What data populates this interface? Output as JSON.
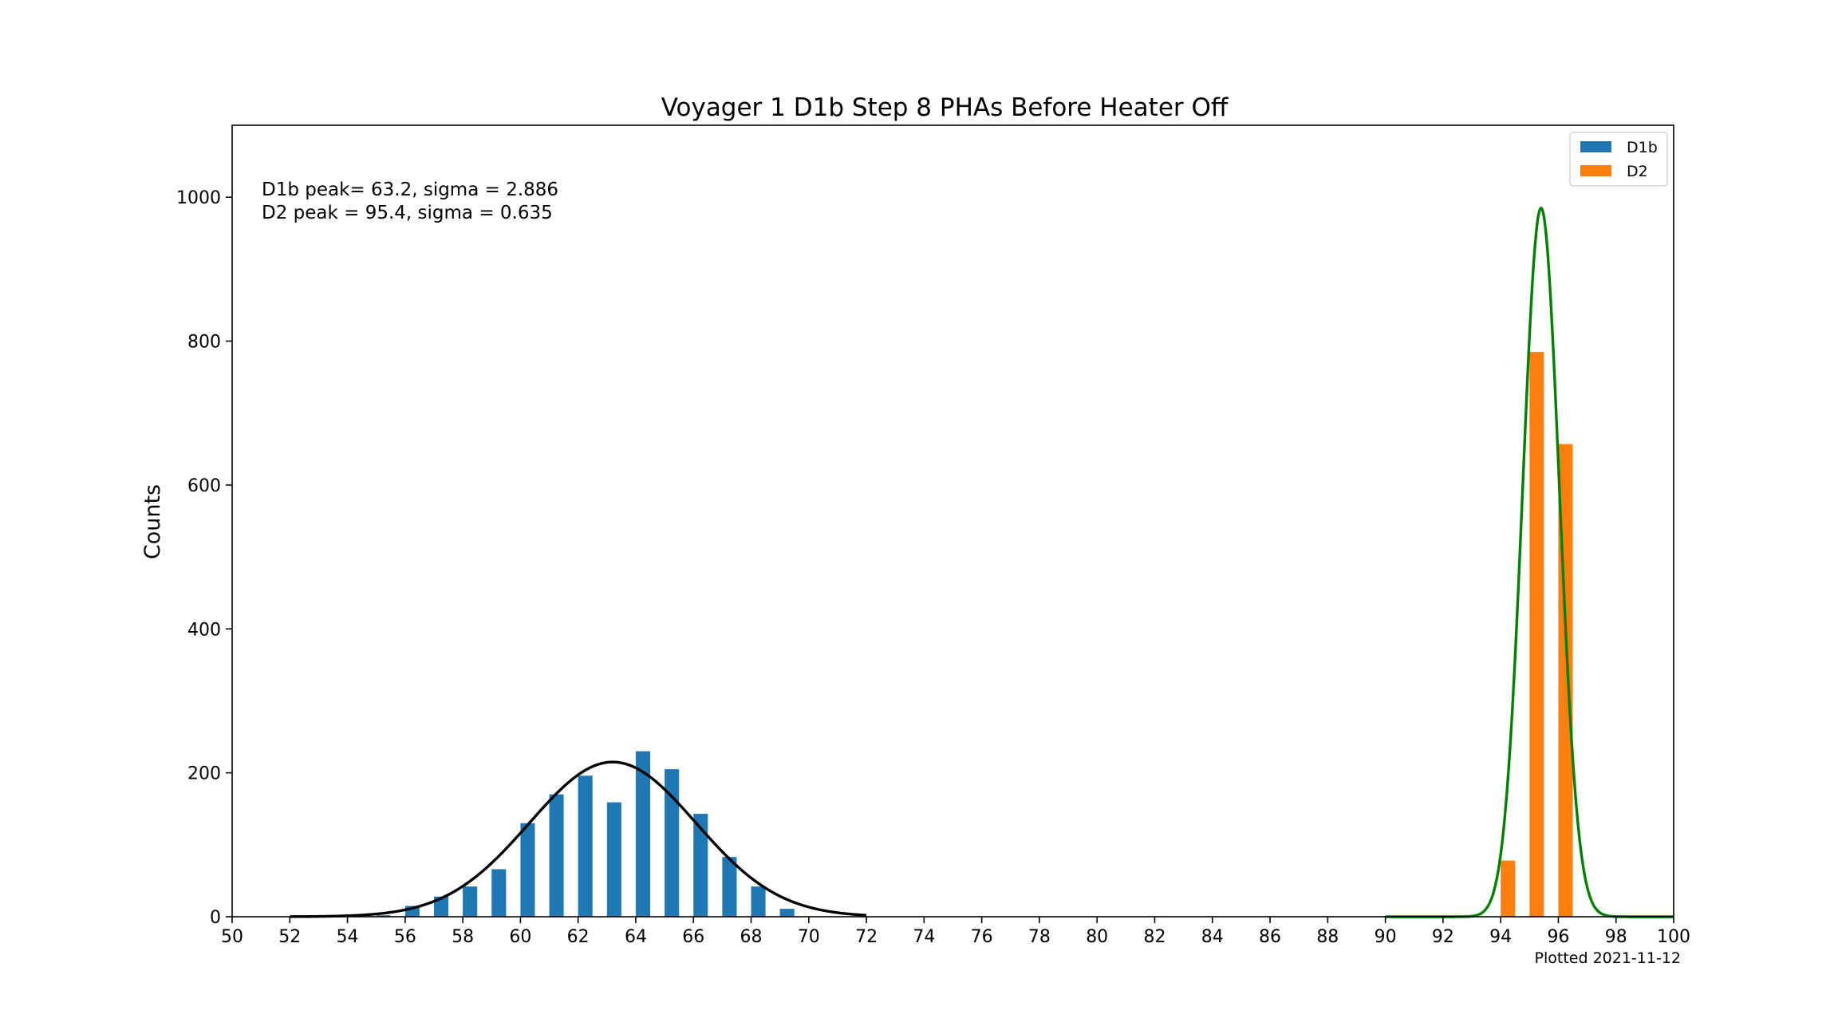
{
  "chart_data": {
    "type": "bar",
    "title": "Voyager 1 D1b Step 8 PHAs Before Heater Off",
    "xlabel": "",
    "ylabel": "Counts",
    "xlim": [
      50,
      100
    ],
    "ylim": [
      0,
      1100
    ],
    "xticks": [
      50,
      52,
      54,
      56,
      58,
      60,
      62,
      64,
      66,
      68,
      70,
      72,
      74,
      76,
      78,
      80,
      82,
      84,
      86,
      88,
      90,
      92,
      94,
      96,
      98,
      100
    ],
    "yticks": [
      0,
      200,
      400,
      600,
      800,
      1000
    ],
    "grid": false,
    "legend_position": "top-right",
    "bar_width": 0.5,
    "series": [
      {
        "name": "D1b",
        "color": "#1f77b4",
        "x": [
          55,
          56,
          57,
          58,
          59,
          60,
          61,
          62,
          63,
          64,
          65,
          66,
          67,
          68,
          69
        ],
        "values": [
          2,
          15,
          28,
          42,
          66,
          130,
          170,
          196,
          159,
          230,
          205,
          143,
          83,
          42,
          11
        ]
      },
      {
        "name": "D2",
        "color": "#ff7f0e",
        "x": [
          94,
          95,
          96
        ],
        "values": [
          78,
          785,
          657
        ]
      }
    ],
    "fits": [
      {
        "label": "D1b fit",
        "color": "#000000",
        "peak": 63.2,
        "sigma": 2.886,
        "amplitude": 215,
        "x_range": [
          52,
          72
        ]
      },
      {
        "label": "D2 fit",
        "color": "#008000",
        "peak": 95.4,
        "sigma": 0.635,
        "amplitude": 985,
        "x_range": [
          90,
          100
        ]
      }
    ],
    "annotations": [
      "D1b peak= 63.2, sigma = 2.886",
      "D2 peak = 95.4, sigma = 0.635"
    ],
    "footer": "Plotted 2021-11-12"
  }
}
